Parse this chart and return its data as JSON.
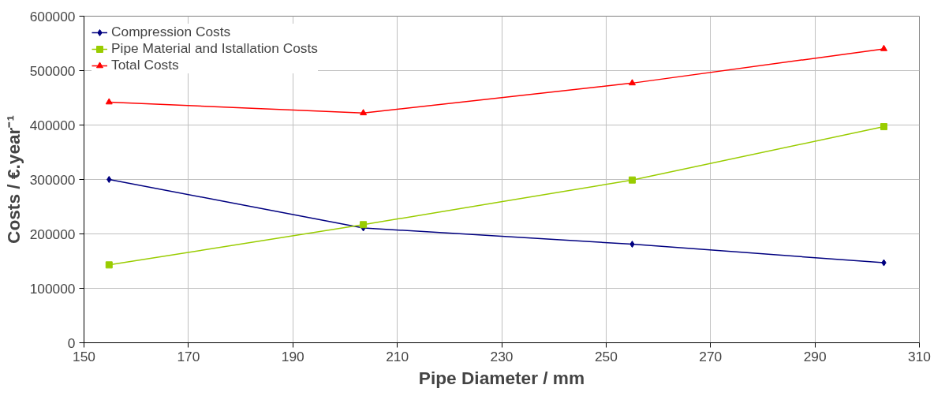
{
  "chart_data": {
    "type": "line",
    "xlabel": "Pipe Diameter / mm",
    "ylabel": "Costs / €.year⁻¹",
    "x": [
      154.8,
      203.5,
      255,
      303.2
    ],
    "series": [
      {
        "name": "Compression Costs",
        "color": "#000080",
        "marker": "diamond",
        "values": [
          300000,
          211000,
          181000,
          147000
        ]
      },
      {
        "name": "Pipe Material and Istallation Costs",
        "color": "#99cc00",
        "marker": "square",
        "values": [
          143000,
          217000,
          299000,
          397000
        ]
      },
      {
        "name": "Total Costs",
        "color": "#ff0000",
        "marker": "triangle",
        "values": [
          442000,
          422000,
          477000,
          540000
        ]
      }
    ],
    "xlim": [
      150,
      310
    ],
    "xticks": [
      150,
      170,
      190,
      210,
      230,
      250,
      270,
      290,
      310
    ],
    "ylim": [
      0,
      600000
    ],
    "yticks": [
      0,
      100000,
      200000,
      300000,
      400000,
      500000,
      600000
    ],
    "grid": true,
    "legend": "top left"
  }
}
